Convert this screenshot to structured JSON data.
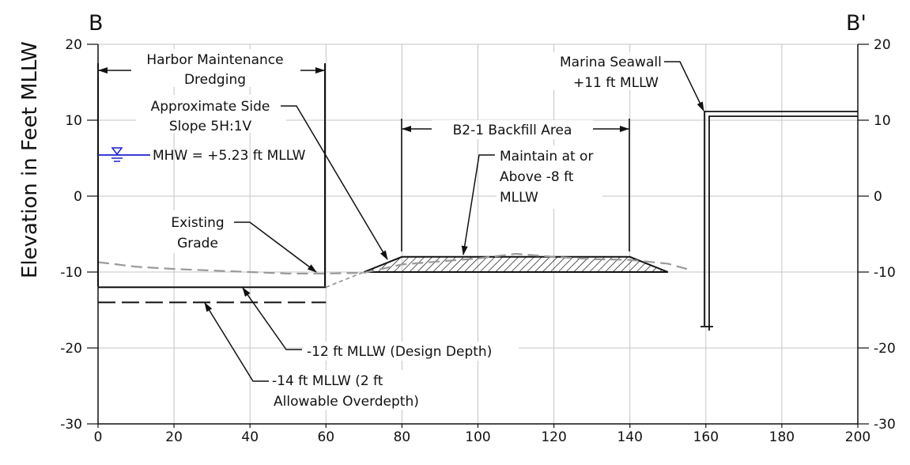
{
  "section": {
    "left_label": "B",
    "right_label": "B'",
    "y_axis_label": "Elevation in Feet MLLW",
    "x_ticks": [
      "0",
      "20",
      "40",
      "60",
      "80",
      "100",
      "120",
      "140",
      "160",
      "180",
      "200"
    ],
    "y_ticks": [
      "20",
      "10",
      "0",
      "-10",
      "-20",
      "-30"
    ],
    "x_range": [
      0,
      200
    ],
    "y_range": [
      -30,
      20
    ],
    "grid": true
  },
  "annotations": {
    "dredging_line1": "Harbor Maintenance",
    "dredging_line2": "Dredging",
    "side_slope_line1": "Approximate Side",
    "side_slope_line2": "Slope 5H:1V",
    "mhw": "MHW = +5.23 ft MLLW",
    "existing_line1": "Existing",
    "existing_line2": "Grade",
    "backfill_area": "B2-1 Backfill Area",
    "maintain_line1": "Maintain at or",
    "maintain_line2": "Above -8 ft",
    "maintain_line3": "MLLW",
    "seawall_line1": "Marina Seawall",
    "seawall_line2": "+11 ft MLLW",
    "design_depth": "-12 ft MLLW (Design Depth)",
    "overdepth_line1": "-14 ft MLLW (2 ft",
    "overdepth_line2": "Allowable Overdepth)"
  },
  "profile": {
    "design_depth_elev": -12,
    "overdepth_elev": -14,
    "mhw_elev": 5.23,
    "dredge_limits_x": [
      0,
      60
    ],
    "backfill_limits_x": [
      80,
      140
    ],
    "backfill_top_elev": -8,
    "backfill_toe_x": [
      70,
      150
    ],
    "backfill_toe_elev": -10,
    "seawall_x": 160,
    "seawall_top_elev": 11,
    "seawall_tip_elev": -17.5,
    "existing_grade": [
      [
        0,
        -8.7
      ],
      [
        10,
        -9.3
      ],
      [
        20,
        -9.6
      ],
      [
        30,
        -9.8
      ],
      [
        40,
        -10.0
      ],
      [
        50,
        -10.2
      ],
      [
        60,
        -10.2
      ],
      [
        70,
        -10.1
      ],
      [
        80,
        -9.0
      ],
      [
        90,
        -8.6
      ],
      [
        100,
        -8.2
      ],
      [
        110,
        -7.6
      ],
      [
        120,
        -8.0
      ],
      [
        130,
        -8.3
      ],
      [
        140,
        -8.4
      ],
      [
        150,
        -8.9
      ],
      [
        155,
        -9.6
      ]
    ]
  }
}
